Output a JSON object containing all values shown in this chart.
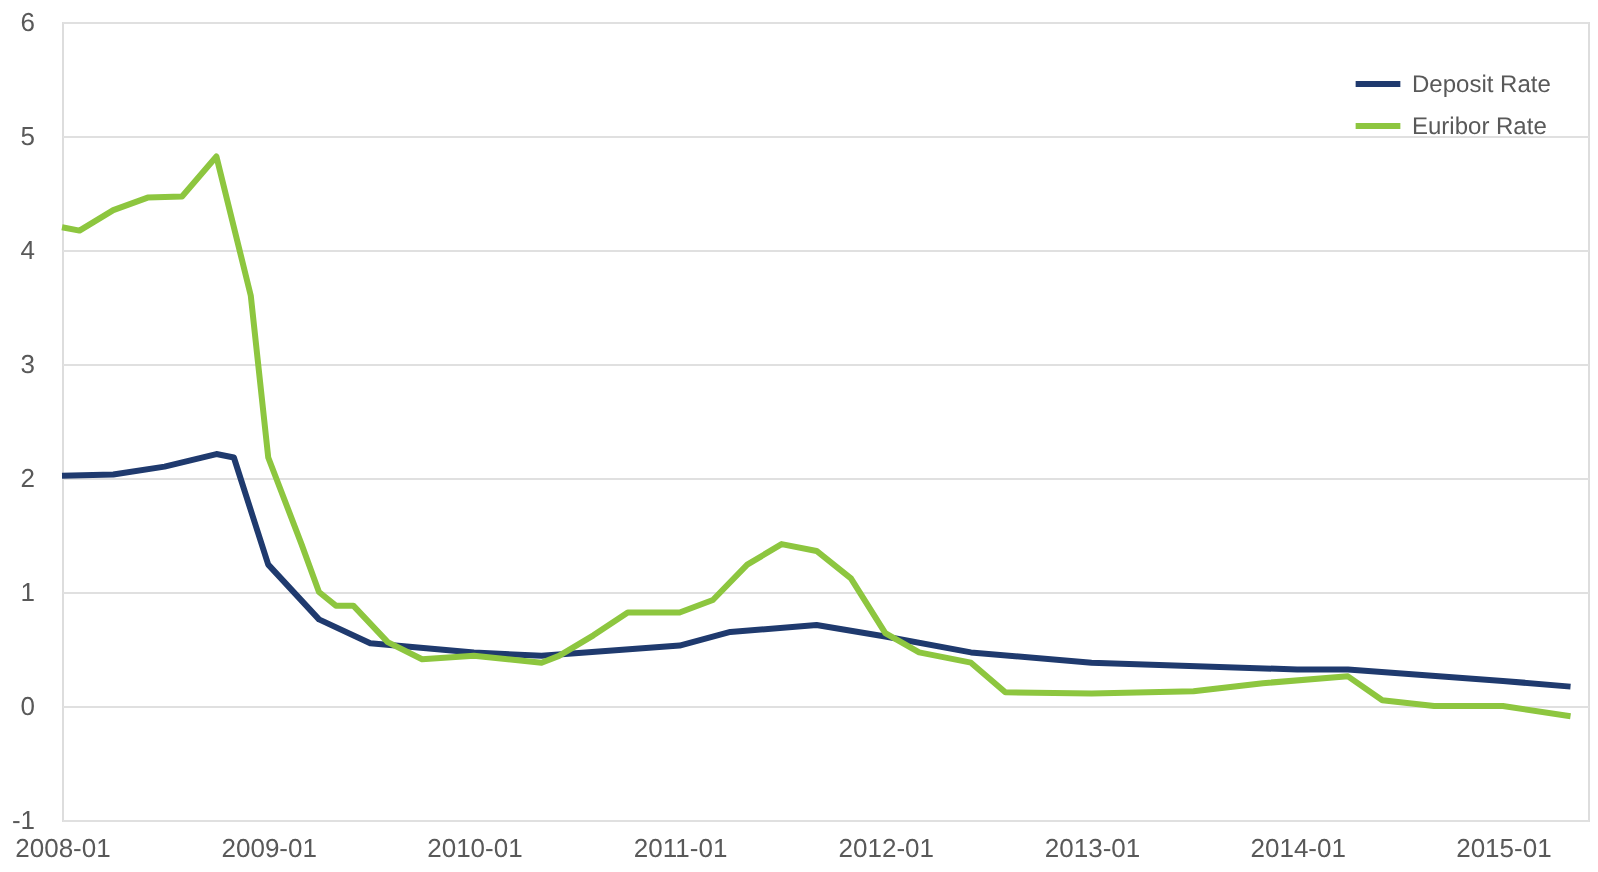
{
  "chart_data": {
    "type": "line",
    "xlim": [
      "2008-01",
      "2015-06"
    ],
    "xticks": [
      "2008-01",
      "2009-01",
      "2010-01",
      "2011-01",
      "2012-01",
      "2013-01",
      "2014-01",
      "2015-01"
    ],
    "ylim": [
      -1,
      6
    ],
    "yticks": [
      -1,
      0,
      1,
      2,
      3,
      4,
      5,
      6
    ],
    "grid": "y",
    "legend": "top right",
    "line_style": "solid",
    "marker": "none",
    "series": [
      {
        "name": "Deposit Rate",
        "color": "#1f3a6e",
        "x": [
          "2008-01",
          "2008-04",
          "2008-07",
          "2008-10",
          "2008-11",
          "2009-01",
          "2009-04",
          "2009-07",
          "2010-01",
          "2010-05",
          "2011-01",
          "2011-04",
          "2011-09",
          "2012-01",
          "2012-06",
          "2013-01",
          "2014-01",
          "2014-04",
          "2015-01",
          "2015-05"
        ],
        "values": [
          2.02,
          2.03,
          2.1,
          2.21,
          2.18,
          1.24,
          0.76,
          0.55,
          0.47,
          0.44,
          0.53,
          0.65,
          0.71,
          0.61,
          0.47,
          0.38,
          0.32,
          0.32,
          0.22,
          0.17
        ]
      },
      {
        "name": "Euribor Rate",
        "color": "#8dc63f",
        "x": [
          "2008-01",
          "2008-02",
          "2008-04",
          "2008-06",
          "2008-08",
          "2008-10",
          "2008-12",
          "2009-01",
          "2009-03",
          "2009-04",
          "2009-05",
          "2009-06",
          "2009-08",
          "2009-10",
          "2010-01",
          "2010-05",
          "2010-06",
          "2010-08",
          "2010-10",
          "2011-01",
          "2011-03",
          "2011-05",
          "2011-07",
          "2011-09",
          "2011-11",
          "2012-01",
          "2012-03",
          "2012-06",
          "2012-08",
          "2013-01",
          "2013-07",
          "2013-11",
          "2014-04",
          "2014-06",
          "2014-09",
          "2015-01",
          "2015-05"
        ],
        "values": [
          4.2,
          4.17,
          4.35,
          4.46,
          4.47,
          4.82,
          3.6,
          2.18,
          1.42,
          1.0,
          0.88,
          0.88,
          0.56,
          0.41,
          0.44,
          0.38,
          0.44,
          0.62,
          0.82,
          0.82,
          0.93,
          1.24,
          1.42,
          1.36,
          1.12,
          0.64,
          0.47,
          0.38,
          0.12,
          0.11,
          0.13,
          0.2,
          0.26,
          0.05,
          0.0,
          0.0,
          -0.09
        ]
      }
    ]
  }
}
